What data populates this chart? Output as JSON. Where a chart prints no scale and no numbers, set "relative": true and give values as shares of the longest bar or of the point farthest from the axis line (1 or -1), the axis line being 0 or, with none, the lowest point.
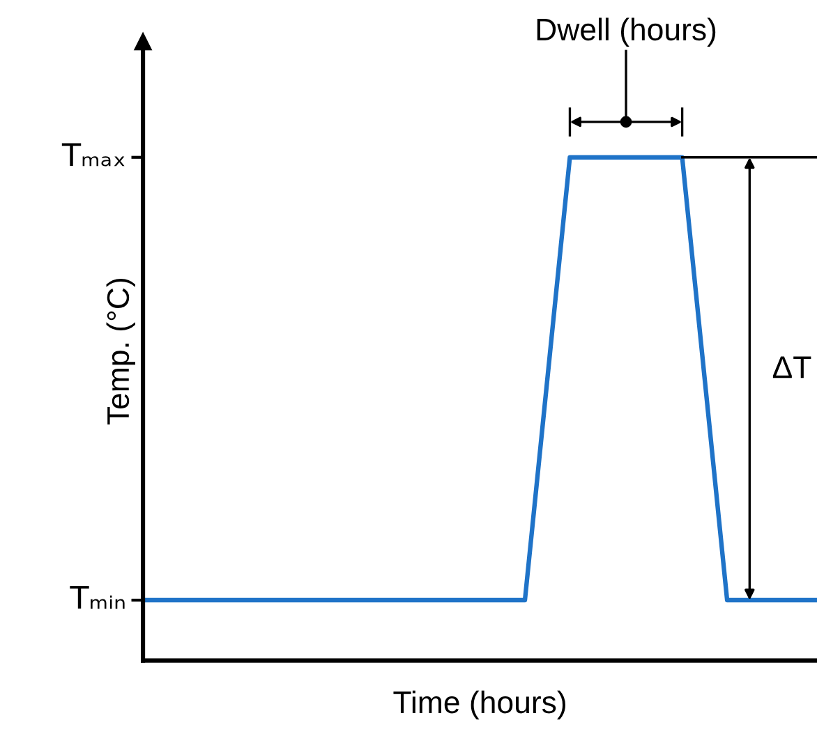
{
  "chart_data": {
    "type": "line",
    "xlabel": "Time (hours)",
    "ylabel": "Temp. (°C)",
    "categories": [
      null,
      null,
      null,
      null,
      null,
      null,
      null,
      null,
      null,
      null,
      null,
      null,
      null,
      null,
      null,
      null,
      null,
      null,
      null,
      null,
      null,
      null,
      null,
      null,
      null,
      null,
      null,
      null,
      null,
      null,
      null
    ],
    "series": [
      {
        "values": [
          0.12,
          0.12,
          0.12,
          0.12,
          0.12,
          0.12,
          0.12,
          0.12,
          0.12,
          0.12,
          0.12,
          0.12,
          0.12,
          0.12,
          0.12,
          0.12,
          0.12,
          0.12,
          0.56,
          1,
          1,
          1,
          1,
          1,
          1,
          0.56,
          0.12,
          0.12,
          0.12,
          0.12,
          0.12
        ],
        "color": "#1f73c8"
      }
    ],
    "relative": true,
    "grid": false,
    "marker": "none",
    "line_style": "solid",
    "ref_lines": [
      {
        "axis": "y",
        "value": 1,
        "color": "#000000"
      }
    ],
    "annotations": [
      "Dwell (hours)",
      "ΔT",
      "Tₘₐₓ",
      "Tₘᵢₙ"
    ]
  }
}
